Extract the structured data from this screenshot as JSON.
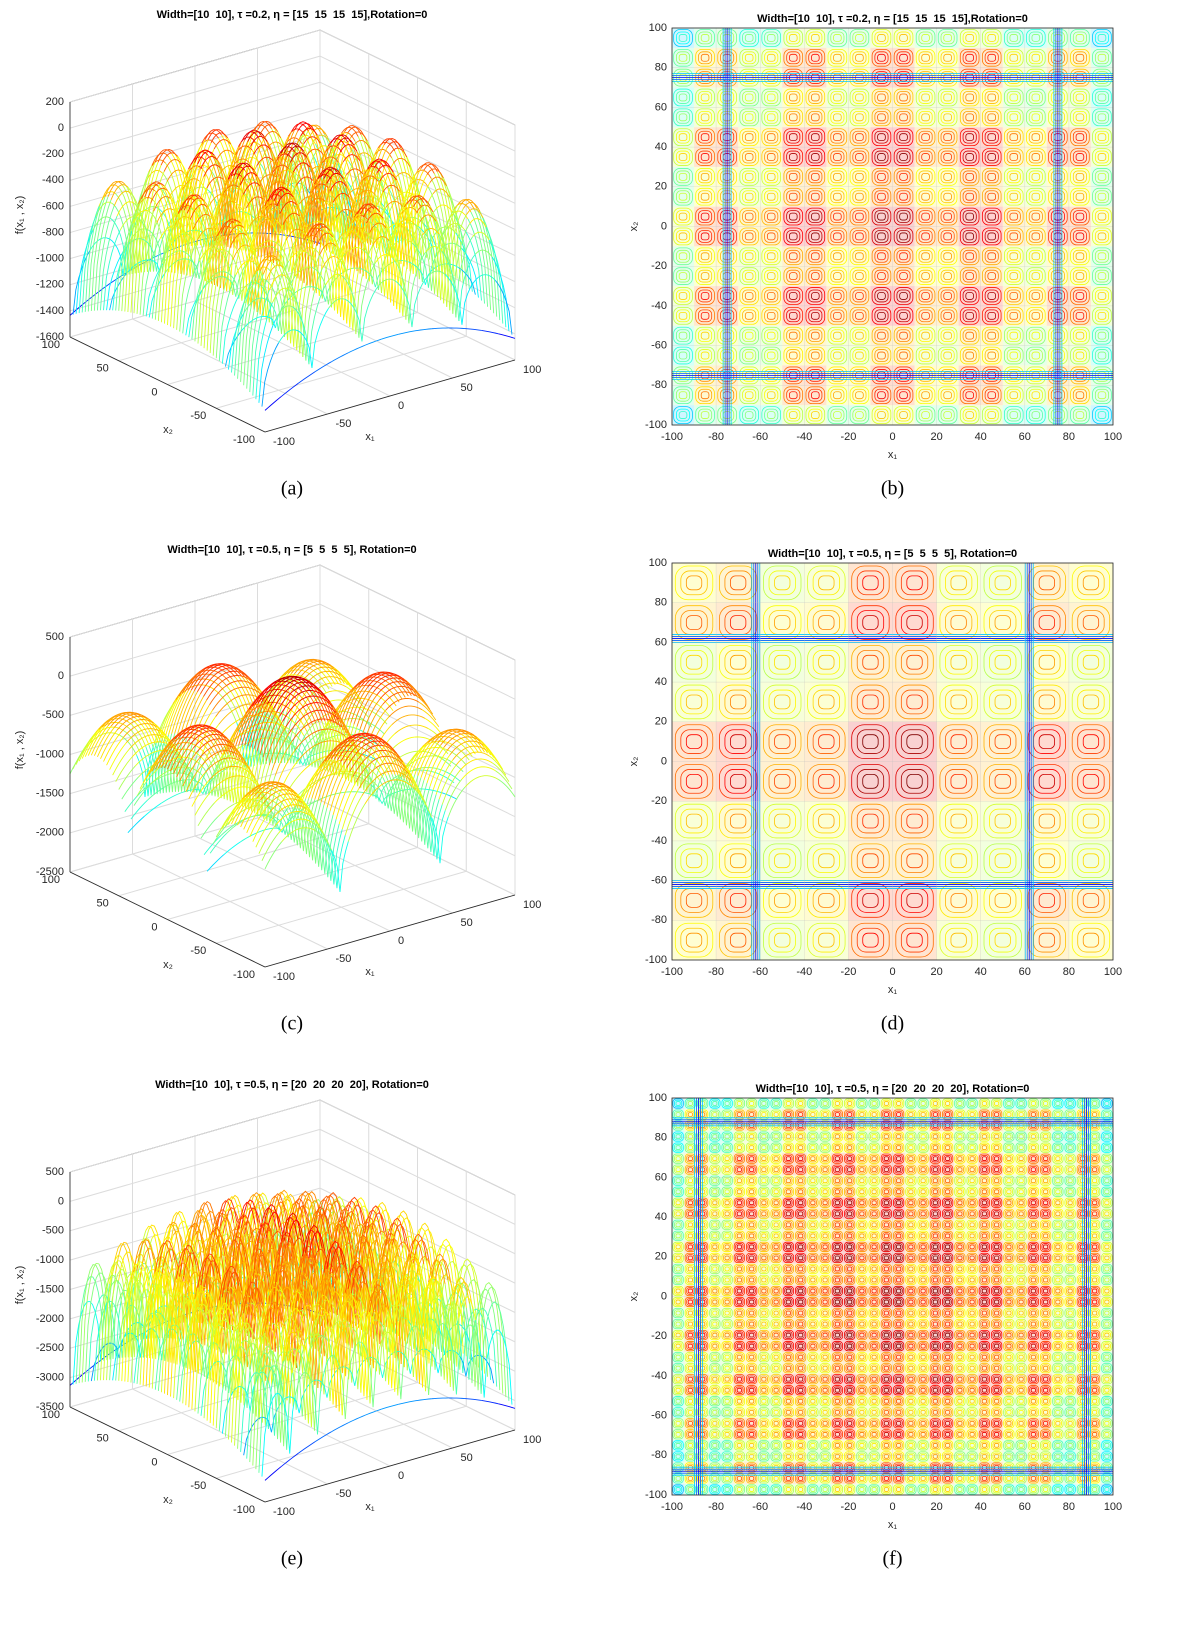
{
  "chart_data": [
    {
      "type": "surface",
      "title": "Width=[10  10], τ =0.2, η = [15  15  15  15],Rotation=0",
      "caption": "(a)",
      "xlabel": "x₁",
      "ylabel": "x₂",
      "zlabel": "f(x₁ , x₂)",
      "xlim": [
        -100,
        100
      ],
      "ylim": [
        -100,
        100
      ],
      "zlim": [
        -1600,
        200
      ],
      "xticks": [
        -100,
        -50,
        0,
        50,
        100
      ],
      "yticks": [
        -100,
        -50,
        0,
        50,
        100
      ],
      "zticks": [
        -1600,
        -1400,
        -1200,
        -1000,
        -800,
        -600,
        -400,
        -200,
        0,
        200
      ],
      "grid": true
    },
    {
      "type": "contour",
      "title": "Width=[10  10], τ =0.2, η = [15  15  15  15],Rotation=0",
      "caption": "(b)",
      "xlabel": "x₁",
      "ylabel": "x₂",
      "xlim": [
        -100,
        100
      ],
      "ylim": [
        -100,
        100
      ],
      "xticks": [
        -100,
        -80,
        -60,
        -40,
        -20,
        0,
        20,
        40,
        60,
        80,
        100
      ],
      "yticks": [
        -100,
        -80,
        -60,
        -40,
        -20,
        0,
        20,
        40,
        60,
        80,
        100
      ],
      "grid": true
    },
    {
      "type": "surface",
      "title": "Width=[10  10], τ =0.5, η = [5  5  5  5], Rotation=0",
      "caption": "(c)",
      "xlabel": "x₁",
      "ylabel": "x₂",
      "zlabel": "f(x₁ , x₂)",
      "xlim": [
        -100,
        100
      ],
      "ylim": [
        -100,
        100
      ],
      "zlim": [
        -2500,
        500
      ],
      "xticks": [
        -100,
        -50,
        0,
        50,
        100
      ],
      "yticks": [
        -100,
        -50,
        0,
        50,
        100
      ],
      "zticks": [
        -2500,
        -2000,
        -1500,
        -1000,
        -500,
        0,
        500
      ],
      "grid": true
    },
    {
      "type": "contour",
      "title": "Width=[10  10], τ =0.5, η = [5  5  5  5], Rotation=0",
      "caption": "(d)",
      "xlabel": "x₁",
      "ylabel": "x₂",
      "xlim": [
        -100,
        100
      ],
      "ylim": [
        -100,
        100
      ],
      "xticks": [
        -100,
        -80,
        -60,
        -40,
        -20,
        0,
        20,
        40,
        60,
        80,
        100
      ],
      "yticks": [
        -100,
        -80,
        -60,
        -40,
        -20,
        0,
        20,
        40,
        60,
        80,
        100
      ],
      "grid": true
    },
    {
      "type": "surface",
      "title": "Width=[10  10], τ =0.5, η = [20  20  20  20], Rotation=0",
      "caption": "(e)",
      "xlabel": "x₁",
      "ylabel": "x₂",
      "zlabel": "f(x₁ , x₂)",
      "xlim": [
        -100,
        100
      ],
      "ylim": [
        -100,
        100
      ],
      "zlim": [
        -3500,
        500
      ],
      "xticks": [
        -100,
        -50,
        0,
        50,
        100
      ],
      "yticks": [
        -100,
        -50,
        0,
        50,
        100
      ],
      "zticks": [
        -3500,
        -3000,
        -2500,
        -2000,
        -1500,
        -1000,
        -500,
        0,
        500
      ],
      "grid": true
    },
    {
      "type": "contour",
      "title": "Width=[10  10], τ =0.5, η = [20  20  20  20], Rotation=0",
      "caption": "(f)",
      "xlabel": "x₁",
      "ylabel": "x₂",
      "xlim": [
        -100,
        100
      ],
      "ylim": [
        -100,
        100
      ],
      "xticks": [
        -100,
        -80,
        -60,
        -40,
        -20,
        0,
        20,
        40,
        60,
        80,
        100
      ],
      "yticks": [
        -100,
        -80,
        -60,
        -40,
        -20,
        0,
        20,
        40,
        60,
        80,
        100
      ],
      "grid": true
    }
  ]
}
